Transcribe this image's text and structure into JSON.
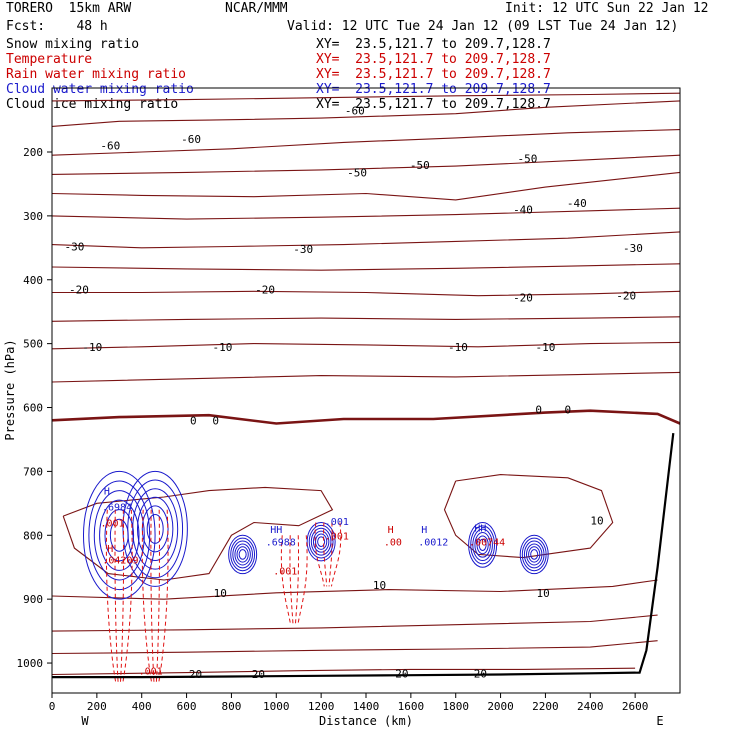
{
  "header": {
    "model": "TORERO  15km ARW",
    "center": "NCAR/MMM",
    "init": "Init: 12 UTC Sun 22 Jan 12",
    "fcst": "Fcst:    48 h",
    "valid": "Valid: 12 UTC Tue 24 Jan 12 (09 LST Tue 24 Jan 12)"
  },
  "fields": [
    {
      "name": "Snow mixing ratio",
      "xy": "XY=  23.5,121.7 to 209.7,128.7",
      "color": "#000000"
    },
    {
      "name": "Temperature",
      "xy": "XY=  23.5,121.7 to 209.7,128.7",
      "color": "#cc0000"
    },
    {
      "name": "Rain water mixing ratio",
      "xy": "XY=  23.5,121.7 to 209.7,128.7",
      "color": "#cc0000"
    },
    {
      "name": "Cloud water mixing ratio",
      "xy": "XY=  23.5,121.7 to 209.7,128.7",
      "color": "#1a1acc"
    },
    {
      "name": "Cloud ice mixing ratio",
      "xy": "XY=  23.5,121.7 to 209.7,128.7",
      "color": "#000000"
    }
  ],
  "chart_data": {
    "type": "cross-section contour",
    "xlabel": "Distance (km)",
    "ylabel": "Pressure (hPa)",
    "xlim": [
      0,
      2800
    ],
    "ylim": [
      1050,
      100
    ],
    "x_ticks": [
      0,
      200,
      400,
      600,
      800,
      1000,
      1200,
      1400,
      1600,
      1800,
      2000,
      2200,
      2400,
      2600
    ],
    "y_ticks": [
      200,
      300,
      400,
      500,
      600,
      700,
      800,
      900,
      1000
    ],
    "x_end_labels": {
      "left": "W",
      "right": "E"
    },
    "temperature_isotherms": [
      {
        "value": -60,
        "points": [
          [
            0,
            160
          ],
          [
            300,
            152
          ],
          [
            700,
            150
          ],
          [
            1200,
            147
          ],
          [
            1800,
            140
          ],
          [
            2200,
            130
          ],
          [
            2800,
            120
          ]
        ],
        "labels": [
          {
            "x": 260,
            "p": 190
          },
          {
            "x": 620,
            "p": 180
          },
          {
            "x": 1350,
            "p": 135
          }
        ]
      },
      {
        "value": -50,
        "points": [
          [
            0,
            205
          ],
          [
            400,
            200
          ],
          [
            800,
            195
          ],
          [
            1300,
            185
          ],
          [
            1800,
            178
          ],
          [
            2300,
            170
          ],
          [
            2800,
            165
          ]
        ],
        "labels": [
          {
            "x": 1360,
            "p": 232
          },
          {
            "x": 1640,
            "p": 220
          },
          {
            "x": 2120,
            "p": 210
          }
        ]
      },
      {
        "value": -40,
        "points": [
          [
            0,
            265
          ],
          [
            400,
            268
          ],
          [
            900,
            270
          ],
          [
            1400,
            265
          ],
          [
            1800,
            275
          ],
          [
            2200,
            255
          ],
          [
            2800,
            232
          ]
        ],
        "labels": [
          {
            "x": 2100,
            "p": 290
          },
          {
            "x": 2340,
            "p": 280
          }
        ]
      },
      {
        "value": -30,
        "points": [
          [
            0,
            345
          ],
          [
            400,
            350
          ],
          [
            800,
            348
          ],
          [
            1300,
            345
          ],
          [
            1800,
            340
          ],
          [
            2300,
            335
          ],
          [
            2800,
            325
          ]
        ],
        "labels": [
          {
            "x": 100,
            "p": 348
          },
          {
            "x": 1120,
            "p": 352
          },
          {
            "x": 2590,
            "p": 350
          }
        ]
      },
      {
        "value": -20,
        "points": [
          [
            0,
            420
          ],
          [
            400,
            420
          ],
          [
            900,
            418
          ],
          [
            1400,
            420
          ],
          [
            1900,
            425
          ],
          [
            2400,
            422
          ],
          [
            2800,
            418
          ]
        ],
        "labels": [
          {
            "x": 120,
            "p": 415
          },
          {
            "x": 950,
            "p": 415
          },
          {
            "x": 2100,
            "p": 428
          },
          {
            "x": 2560,
            "p": 425
          }
        ]
      },
      {
        "value": -10,
        "points": [
          [
            0,
            508
          ],
          [
            400,
            505
          ],
          [
            900,
            500
          ],
          [
            1400,
            502
          ],
          [
            1900,
            505
          ],
          [
            2400,
            500
          ],
          [
            2800,
            498
          ]
        ],
        "labels": [
          {
            "x": 180,
            "p": 505
          },
          {
            "x": 760,
            "p": 505
          },
          {
            "x": 1810,
            "p": 505
          },
          {
            "x": 2200,
            "p": 505
          }
        ]
      },
      {
        "value": 0,
        "points": [
          [
            0,
            620
          ],
          [
            300,
            615
          ],
          [
            700,
            612
          ],
          [
            1000,
            625
          ],
          [
            1300,
            618
          ],
          [
            1700,
            618
          ],
          [
            2200,
            608
          ],
          [
            2400,
            605
          ],
          [
            2700,
            610
          ],
          [
            2800,
            625
          ]
        ],
        "labels": [
          {
            "x": 630,
            "p": 620
          },
          {
            "x": 730,
            "p": 620
          },
          {
            "x": 2170,
            "p": 603
          },
          {
            "x": 2300,
            "p": 603
          }
        ]
      },
      {
        "value": 10,
        "points": [
          [
            0,
            895
          ],
          [
            500,
            900
          ],
          [
            1000,
            890
          ],
          [
            1500,
            885
          ],
          [
            2000,
            888
          ],
          [
            2500,
            880
          ],
          [
            2700,
            870
          ]
        ],
        "labels": [
          {
            "x": 750,
            "p": 890
          },
          {
            "x": 1460,
            "p": 878
          },
          {
            "x": 2190,
            "p": 890
          },
          {
            "x": 2430,
            "p": 777
          }
        ]
      },
      {
        "value": 20,
        "points": [
          [
            0,
            1018
          ],
          [
            600,
            1015
          ],
          [
            1100,
            1012
          ],
          [
            1600,
            1010
          ],
          [
            2100,
            1010
          ],
          [
            2600,
            1008
          ]
        ],
        "labels": [
          {
            "x": 640,
            "p": 1017
          },
          {
            "x": 920,
            "p": 1017
          },
          {
            "x": 1560,
            "p": 1016
          },
          {
            "x": 1910,
            "p": 1016
          }
        ]
      }
    ],
    "extra_isotherms": [
      [
        [
          0,
          560
        ],
        [
          600,
          555
        ],
        [
          1200,
          550
        ],
        [
          1800,
          552
        ],
        [
          2400,
          548
        ],
        [
          2800,
          545
        ]
      ],
      [
        [
          0,
          465
        ],
        [
          600,
          462
        ],
        [
          1200,
          460
        ],
        [
          1800,
          462
        ],
        [
          2400,
          460
        ],
        [
          2800,
          458
        ]
      ],
      [
        [
          0,
          380
        ],
        [
          600,
          383
        ],
        [
          1200,
          385
        ],
        [
          1800,
          382
        ],
        [
          2400,
          378
        ],
        [
          2800,
          375
        ]
      ],
      [
        [
          0,
          300
        ],
        [
          600,
          305
        ],
        [
          1200,
          302
        ],
        [
          1800,
          298
        ],
        [
          2400,
          292
        ],
        [
          2800,
          288
        ]
      ],
      [
        [
          0,
          235
        ],
        [
          600,
          232
        ],
        [
          1200,
          228
        ],
        [
          1800,
          222
        ],
        [
          2400,
          212
        ],
        [
          2800,
          205
        ]
      ],
      [
        [
          0,
          120
        ],
        [
          600,
          118
        ],
        [
          1200,
          115
        ],
        [
          1800,
          112
        ],
        [
          2400,
          110
        ],
        [
          2800,
          108
        ]
      ],
      [
        [
          0,
          950
        ],
        [
          600,
          948
        ],
        [
          1200,
          945
        ],
        [
          1800,
          940
        ],
        [
          2400,
          935
        ],
        [
          2700,
          925
        ]
      ],
      [
        [
          0,
          985
        ],
        [
          600,
          983
        ],
        [
          1200,
          980
        ],
        [
          1800,
          978
        ],
        [
          2400,
          975
        ],
        [
          2700,
          965
        ]
      ]
    ],
    "ten_degree_pocket": [
      [
        50,
        770
      ],
      [
        200,
        750
      ],
      [
        500,
        740
      ],
      [
        700,
        730
      ],
      [
        950,
        725
      ],
      [
        1200,
        730
      ],
      [
        1250,
        760
      ],
      [
        1100,
        785
      ],
      [
        900,
        780
      ],
      [
        800,
        800
      ],
      [
        700,
        860
      ],
      [
        500,
        870
      ],
      [
        250,
        860
      ],
      [
        100,
        820
      ],
      [
        50,
        770
      ]
    ],
    "warm_pocket_east": [
      [
        1800,
        715
      ],
      [
        2000,
        705
      ],
      [
        2300,
        710
      ],
      [
        2450,
        730
      ],
      [
        2500,
        780
      ],
      [
        2400,
        820
      ],
      [
        2100,
        835
      ],
      [
        1900,
        830
      ],
      [
        1800,
        800
      ],
      [
        1750,
        760
      ],
      [
        1800,
        715
      ]
    ],
    "cloud_water_features": [
      {
        "x": 300,
        "p_top": 700,
        "p_bot": 900,
        "h": 0.6984
      },
      {
        "x": 460,
        "p_top": 700,
        "p_bot": 880
      },
      {
        "x": 850,
        "p_top": 800,
        "p_bot": 860
      },
      {
        "x": 1200,
        "p_top": 780,
        "p_bot": 840,
        "h": 0.6988
      },
      {
        "x": 1920,
        "p_top": 780,
        "p_bot": 850
      },
      {
        "x": 2150,
        "p_top": 800,
        "p_bot": 860
      }
    ],
    "rain_features": [
      {
        "x": 300,
        "p_top": 760,
        "p_bot": 1030
      },
      {
        "x": 460,
        "p_top": 760,
        "p_bot": 1030
      },
      {
        "x": 1080,
        "p_top": 800,
        "p_bot": 940
      },
      {
        "x": 1230,
        "p_top": 780,
        "p_bot": 880
      }
    ],
    "high_labels": [
      {
        "text": "H",
        "x": 245,
        "p": 730,
        "color": "#1a1acc"
      },
      {
        "text": ".6984",
        "x": 290,
        "p": 755,
        "color": "#1a1acc"
      },
      {
        "text": ".001",
        "x": 270,
        "p": 780,
        "color": "#cc0000"
      },
      {
        "text": "H",
        "x": 260,
        "p": 820,
        "color": "#cc0000"
      },
      {
        "text": ".04209",
        "x": 305,
        "p": 838,
        "color": "#cc0000"
      },
      {
        "text": "HH",
        "x": 1000,
        "p": 790,
        "color": "#1a1acc"
      },
      {
        "text": ".6988",
        "x": 1020,
        "p": 810,
        "color": "#1a1acc"
      },
      {
        "text": ".001",
        "x": 1270,
        "p": 778,
        "color": "#1a1acc"
      },
      {
        "text": ".001",
        "x": 1270,
        "p": 800,
        "color": "#cc0000"
      },
      {
        "text": ".001",
        "x": 1040,
        "p": 855,
        "color": "#cc0000"
      },
      {
        "text": "H",
        "x": 1510,
        "p": 790,
        "color": "#cc0000"
      },
      {
        "text": ".00",
        "x": 1520,
        "p": 810,
        "color": "#cc0000"
      },
      {
        "text": "H",
        "x": 1660,
        "p": 790,
        "color": "#1a1acc"
      },
      {
        "text": ".0012",
        "x": 1700,
        "p": 810,
        "color": "#1a1acc"
      },
      {
        "text": "HH",
        "x": 1910,
        "p": 788,
        "color": "#1a1acc"
      },
      {
        "text": ".00744",
        "x": 1940,
        "p": 810,
        "color": "#cc0000"
      },
      {
        "text": ".001",
        "x": 440,
        "p": 1012,
        "color": "#cc0000"
      }
    ],
    "terrain": [
      [
        0,
        1022
      ],
      [
        400,
        1022
      ],
      [
        800,
        1021
      ],
      [
        1200,
        1020
      ],
      [
        1600,
        1019
      ],
      [
        2000,
        1018
      ],
      [
        2400,
        1016
      ],
      [
        2620,
        1015
      ],
      [
        2650,
        980
      ],
      [
        2700,
        850
      ],
      [
        2750,
        700
      ],
      [
        2770,
        640
      ]
    ]
  }
}
